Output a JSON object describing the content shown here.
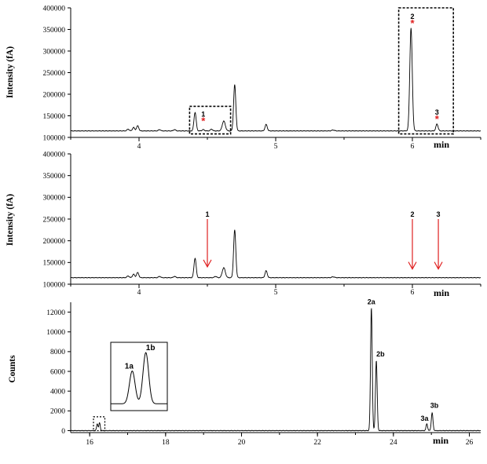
{
  "chart_data": [
    {
      "type": "line",
      "panel": "top",
      "ylabel": "Intensity (fA)",
      "xunit": "min",
      "xlim": [
        3.5,
        6.5
      ],
      "ylim": [
        100000,
        400000
      ],
      "xticks": [
        4,
        5,
        6
      ],
      "yticks": [
        100000,
        150000,
        200000,
        250000,
        300000,
        350000,
        400000
      ],
      "baseline": 115000,
      "peaks": [
        {
          "x": 3.92,
          "y": 119000,
          "w": 0.008
        },
        {
          "x": 3.96,
          "y": 123000,
          "w": 0.008
        },
        {
          "x": 3.99,
          "y": 127000,
          "w": 0.008
        },
        {
          "x": 4.15,
          "y": 118000,
          "w": 0.008
        },
        {
          "x": 4.26,
          "y": 118000,
          "w": 0.008
        },
        {
          "x": 4.41,
          "y": 158000,
          "w": 0.008
        },
        {
          "x": 4.47,
          "y": 118000,
          "w": 0.008
        },
        {
          "x": 4.53,
          "y": 119000,
          "w": 0.008
        },
        {
          "x": 4.62,
          "y": 138000,
          "w": 0.011
        },
        {
          "x": 4.7,
          "y": 222000,
          "w": 0.008
        },
        {
          "x": 4.93,
          "y": 130000,
          "w": 0.008
        },
        {
          "x": 5.42,
          "y": 117000,
          "w": 0.01
        },
        {
          "x": 5.99,
          "y": 353000,
          "w": 0.009
        },
        {
          "x": 6.18,
          "y": 131000,
          "w": 0.008
        }
      ],
      "annotations": [
        {
          "label": "1",
          "x": 4.47,
          "y": 148000,
          "star": true
        },
        {
          "label": "2",
          "x": 6.0,
          "y": 375000,
          "star": true
        },
        {
          "label": "3",
          "x": 6.18,
          "y": 153000,
          "star": true
        }
      ],
      "boxes": [
        [
          4.37,
          4.67,
          108000,
          172000
        ],
        [
          5.9,
          6.3,
          108000,
          400000
        ]
      ]
    },
    {
      "type": "line",
      "panel": "middle",
      "ylabel": "Intensity (fA)",
      "xunit": "min",
      "xlim": [
        3.5,
        6.5
      ],
      "ylim": [
        100000,
        400000
      ],
      "xticks": [
        4,
        5,
        6
      ],
      "yticks": [
        100000,
        150000,
        200000,
        250000,
        300000,
        350000,
        400000
      ],
      "baseline": 115000,
      "peaks": [
        {
          "x": 3.92,
          "y": 119000,
          "w": 0.008
        },
        {
          "x": 3.96,
          "y": 123000,
          "w": 0.008
        },
        {
          "x": 3.99,
          "y": 127000,
          "w": 0.008
        },
        {
          "x": 4.15,
          "y": 118000,
          "w": 0.008
        },
        {
          "x": 4.26,
          "y": 118000,
          "w": 0.008
        },
        {
          "x": 4.41,
          "y": 160000,
          "w": 0.008
        },
        {
          "x": 4.56,
          "y": 118000,
          "w": 0.008
        },
        {
          "x": 4.62,
          "y": 138000,
          "w": 0.011
        },
        {
          "x": 4.7,
          "y": 225000,
          "w": 0.008
        },
        {
          "x": 4.93,
          "y": 131000,
          "w": 0.008
        },
        {
          "x": 5.42,
          "y": 117000,
          "w": 0.01
        }
      ],
      "arrows": [
        {
          "label": "1",
          "x": 4.5,
          "y_top": 250000,
          "y_tip": 140000
        },
        {
          "label": "2",
          "x": 6.0,
          "y_top": 250000,
          "y_tip": 135000
        },
        {
          "label": "3",
          "x": 6.19,
          "y_top": 250000,
          "y_tip": 135000
        }
      ]
    },
    {
      "type": "line",
      "panel": "bottom",
      "ylabel": "Counts",
      "xunit": "min",
      "xlim": [
        15.5,
        26.3
      ],
      "ylim": [
        -200,
        13000
      ],
      "xticks": [
        16,
        18,
        20,
        22,
        24,
        26
      ],
      "yticks": [
        0,
        2000,
        4000,
        6000,
        8000,
        10000,
        12000
      ],
      "baseline": 0,
      "peaks": [
        {
          "x": 16.2,
          "y": 700,
          "w": 0.018
        },
        {
          "x": 16.26,
          "y": 800,
          "w": 0.018
        },
        {
          "x": 23.42,
          "y": 12500,
          "w": 0.022
        },
        {
          "x": 23.55,
          "y": 7100,
          "w": 0.022
        },
        {
          "x": 24.88,
          "y": 700,
          "w": 0.02
        },
        {
          "x": 25.02,
          "y": 1800,
          "w": 0.022
        }
      ],
      "annotations": [
        {
          "label": "2a",
          "x": 23.42,
          "y": 12800
        },
        {
          "label": "2b",
          "x": 23.66,
          "y": 7500
        },
        {
          "label": "3a",
          "x": 24.82,
          "y": 1000
        },
        {
          "label": "3b",
          "x": 25.08,
          "y": 2300
        }
      ],
      "zoom_box": [
        16.1,
        16.4,
        0,
        1400
      ],
      "inset": {
        "peaks": [
          {
            "label": "1a",
            "x": 0.38,
            "y": 0.58,
            "w": 0.05
          },
          {
            "label": "1b",
            "x": 0.62,
            "y": 0.85,
            "w": 0.05
          }
        ]
      }
    }
  ]
}
